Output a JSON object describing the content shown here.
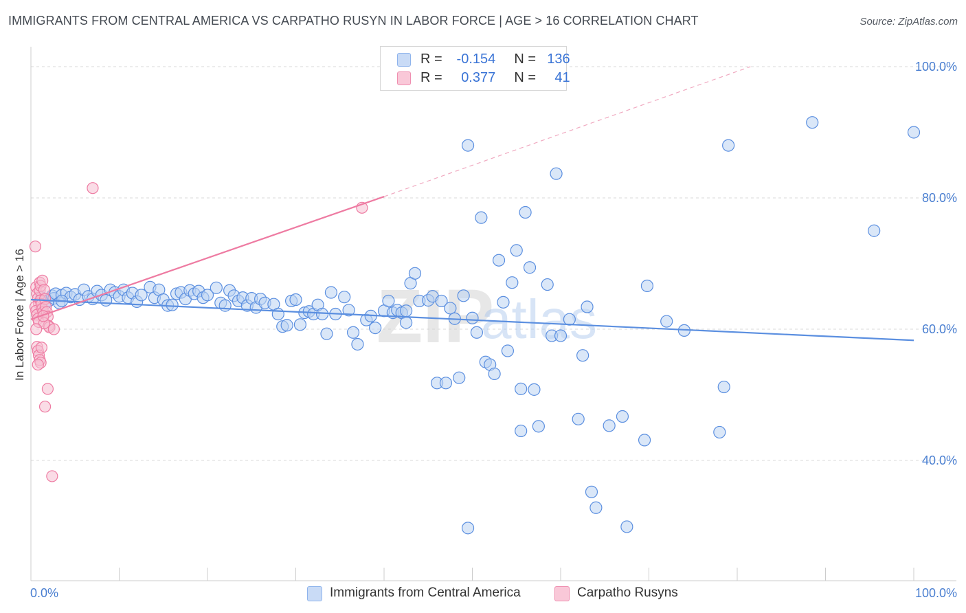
{
  "title": "IMMIGRANTS FROM CENTRAL AMERICA VS CARPATHO RUSYN IN LABOR FORCE | AGE > 16 CORRELATION CHART",
  "source": "Source: ZipAtlas.com",
  "watermark": {
    "zip": "ZIP",
    "atlas": "atlas"
  },
  "legend": {
    "rows": [
      {
        "r_label": "R =",
        "r_value": "-0.154",
        "n_label": "N =",
        "n_value": "136",
        "color": "#8fb4ec",
        "fill": "#c9dbf6"
      },
      {
        "r_label": "R =",
        "r_value": "0.377",
        "n_label": "N =",
        "n_value": "41",
        "color": "#ef8fb0",
        "fill": "#f9c8d8"
      }
    ]
  },
  "bottom_legend": [
    "Immigrants from Central America",
    "Carpatho Rusyns"
  ],
  "chart_data": {
    "type": "scatter",
    "title": "IMMIGRANTS FROM CENTRAL AMERICA VS CARPATHO RUSYN IN LABOR FORCE | AGE > 16 CORRELATION CHART",
    "xlabel": "",
    "ylabel": "In Labor Force | Age > 16",
    "xlim": [
      0,
      100
    ],
    "ylim": [
      21,
      102
    ],
    "x_tick_labels": [
      "0.0%",
      "100.0%"
    ],
    "y_ticks": [
      40,
      60,
      80,
      100
    ],
    "y_tick_labels": [
      "40.0%",
      "60.0%",
      "80.0%",
      "100.0%"
    ],
    "grid": true,
    "series": [
      {
        "name": "Immigrants from Central America",
        "color": "#5b8fe0",
        "fill": "#bcd3f3",
        "trend": {
          "x": [
            0,
            100
          ],
          "y": [
            64.5,
            58.3
          ]
        },
        "points": [
          [
            1.2,
            64.8
          ],
          [
            1.6,
            63.9
          ],
          [
            2.0,
            64.3
          ],
          [
            2.4,
            65.1
          ],
          [
            2.6,
            64.7
          ],
          [
            2.8,
            65.4
          ],
          [
            3.2,
            64.0
          ],
          [
            3.5,
            65.2
          ],
          [
            4.0,
            65.5
          ],
          [
            4.5,
            64.9
          ],
          [
            5.0,
            65.3
          ],
          [
            5.5,
            64.5
          ],
          [
            6.0,
            66.0
          ],
          [
            6.5,
            65.0
          ],
          [
            7.0,
            64.6
          ],
          [
            7.5,
            65.8
          ],
          [
            8.0,
            65.2
          ],
          [
            8.5,
            64.4
          ],
          [
            9.0,
            66.0
          ],
          [
            9.5,
            65.6
          ],
          [
            10.0,
            65.0
          ],
          [
            10.5,
            66.0
          ],
          [
            11.0,
            64.8
          ],
          [
            11.5,
            65.5
          ],
          [
            12.0,
            64.2
          ],
          [
            12.5,
            65.2
          ],
          [
            13.5,
            66.4
          ],
          [
            14.0,
            64.8
          ],
          [
            14.5,
            66.0
          ],
          [
            15.0,
            64.5
          ],
          [
            15.5,
            63.6
          ],
          [
            16.0,
            63.7
          ],
          [
            16.5,
            65.4
          ],
          [
            17.0,
            65.6
          ],
          [
            17.5,
            64.6
          ],
          [
            18.0,
            65.9
          ],
          [
            18.5,
            65.4
          ],
          [
            19.0,
            65.8
          ],
          [
            19.5,
            64.8
          ],
          [
            20.0,
            65.2
          ],
          [
            21.0,
            66.3
          ],
          [
            21.5,
            64.0
          ],
          [
            22.0,
            63.6
          ],
          [
            22.5,
            65.9
          ],
          [
            23.0,
            65.1
          ],
          [
            23.5,
            64.3
          ],
          [
            24.0,
            64.8
          ],
          [
            24.5,
            63.6
          ],
          [
            25.0,
            64.7
          ],
          [
            25.5,
            63.3
          ],
          [
            26.0,
            64.6
          ],
          [
            26.5,
            64.0
          ],
          [
            27.5,
            63.8
          ],
          [
            28.0,
            62.3
          ],
          [
            28.5,
            60.4
          ],
          [
            29.0,
            60.6
          ],
          [
            29.5,
            64.3
          ],
          [
            30.0,
            64.5
          ],
          [
            30.5,
            60.7
          ],
          [
            31.0,
            62.5
          ],
          [
            31.5,
            62.7
          ],
          [
            32.0,
            62.3
          ],
          [
            32.5,
            63.7
          ],
          [
            33.0,
            62.3
          ],
          [
            33.5,
            59.3
          ],
          [
            34.0,
            65.6
          ],
          [
            34.5,
            62.3
          ],
          [
            35.5,
            64.9
          ],
          [
            36.0,
            62.9
          ],
          [
            36.5,
            59.5
          ],
          [
            37.0,
            57.7
          ],
          [
            38.0,
            61.4
          ],
          [
            38.5,
            62.0
          ],
          [
            39.0,
            60.2
          ],
          [
            40.0,
            62.8
          ],
          [
            40.5,
            64.3
          ],
          [
            41.0,
            62.5
          ],
          [
            41.5,
            62.9
          ],
          [
            42.0,
            62.5
          ],
          [
            42.5,
            62.8
          ],
          [
            42.5,
            61.0
          ],
          [
            43.0,
            67.0
          ],
          [
            43.5,
            68.5
          ],
          [
            44.0,
            64.3
          ],
          [
            45.0,
            64.4
          ],
          [
            45.5,
            65.0
          ],
          [
            46.0,
            51.8
          ],
          [
            46.5,
            64.3
          ],
          [
            47.0,
            51.8
          ],
          [
            47.5,
            63.2
          ],
          [
            48.0,
            61.6
          ],
          [
            48.5,
            52.6
          ],
          [
            49.0,
            65.1
          ],
          [
            49.5,
            29.7
          ],
          [
            49.5,
            88.0
          ],
          [
            50.0,
            61.7
          ],
          [
            50.5,
            59.5
          ],
          [
            51.0,
            77.0
          ],
          [
            51.5,
            55.0
          ],
          [
            52.0,
            54.6
          ],
          [
            52.5,
            53.2
          ],
          [
            53.0,
            70.5
          ],
          [
            53.5,
            64.1
          ],
          [
            54.0,
            56.7
          ],
          [
            54.5,
            67.1
          ],
          [
            55.0,
            72.0
          ],
          [
            55.5,
            50.9
          ],
          [
            55.5,
            44.5
          ],
          [
            56.0,
            77.8
          ],
          [
            56.5,
            69.4
          ],
          [
            57.0,
            50.8
          ],
          [
            57.5,
            45.2
          ],
          [
            58.5,
            66.8
          ],
          [
            59.0,
            59.0
          ],
          [
            59.5,
            83.7
          ],
          [
            60.0,
            59.0
          ],
          [
            61.0,
            61.5
          ],
          [
            62.0,
            46.3
          ],
          [
            62.5,
            56.0
          ],
          [
            63.0,
            63.4
          ],
          [
            63.5,
            35.2
          ],
          [
            64.0,
            32.8
          ],
          [
            65.5,
            45.3
          ],
          [
            67.0,
            46.7
          ],
          [
            67.5,
            29.9
          ],
          [
            69.5,
            43.1
          ],
          [
            69.8,
            66.6
          ],
          [
            72.0,
            61.2
          ],
          [
            74.0,
            59.8
          ],
          [
            78.5,
            51.2
          ],
          [
            78.0,
            44.3
          ],
          [
            79.0,
            88.0
          ],
          [
            88.5,
            91.5
          ],
          [
            95.5,
            75.0
          ],
          [
            100.0,
            90.0
          ],
          [
            3.5,
            64.3
          ]
        ]
      },
      {
        "name": "Carpatho Rusyns",
        "color": "#ee7ba2",
        "fill": "#f6c0d2",
        "trend": {
          "x": [
            0,
            40
          ],
          "y": [
            61.5,
            80.2
          ]
        },
        "trend_ext": {
          "x": [
            40,
            81.5
          ],
          "y": [
            80.2,
            100.0
          ]
        },
        "points": [
          [
            0.5,
            72.6
          ],
          [
            0.6,
            66.4
          ],
          [
            0.7,
            65.4
          ],
          [
            0.8,
            64.7
          ],
          [
            0.9,
            63.9
          ],
          [
            0.5,
            63.4
          ],
          [
            0.6,
            62.8
          ],
          [
            0.7,
            62.2
          ],
          [
            0.8,
            61.6
          ],
          [
            0.9,
            61.1
          ],
          [
            1.0,
            65.9
          ],
          [
            1.1,
            64.4
          ],
          [
            1.2,
            63.8
          ],
          [
            1.3,
            63.1
          ],
          [
            1.4,
            62.6
          ],
          [
            1.0,
            67.1
          ],
          [
            1.1,
            66.6
          ],
          [
            1.3,
            67.4
          ],
          [
            1.5,
            66.0
          ],
          [
            1.6,
            64.6
          ],
          [
            1.7,
            63.4
          ],
          [
            1.8,
            62.6
          ],
          [
            1.9,
            61.9
          ],
          [
            2.0,
            60.5
          ],
          [
            2.1,
            60.3
          ],
          [
            1.5,
            60.9
          ],
          [
            0.7,
            57.3
          ],
          [
            0.8,
            56.7
          ],
          [
            0.9,
            56.0
          ],
          [
            1.0,
            55.3
          ],
          [
            1.1,
            54.9
          ],
          [
            0.8,
            54.6
          ],
          [
            1.9,
            50.9
          ],
          [
            1.6,
            48.2
          ],
          [
            2.4,
            37.6
          ],
          [
            7.0,
            81.5
          ],
          [
            37.5,
            78.5
          ],
          [
            0.6,
            60.0
          ],
          [
            1.2,
            57.2
          ],
          [
            2.6,
            60.0
          ],
          [
            1.4,
            62.0
          ]
        ]
      }
    ]
  }
}
